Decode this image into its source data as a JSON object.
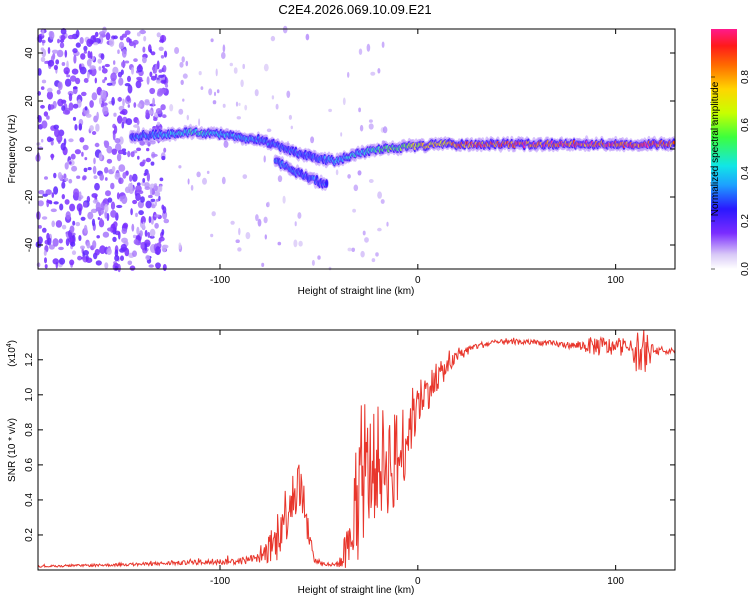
{
  "title": "C2E4.2026.069.10.09.E21",
  "colors": {
    "line": "#e8362c",
    "axis": "#000000",
    "background": "#ffffff"
  },
  "chart_data": [
    {
      "type": "heatmap",
      "name": "spectrogram",
      "xlabel": "Height of straight line (km)",
      "ylabel": "Frequency (Hz)",
      "xlim": [
        -192,
        130
      ],
      "ylim": [
        -50,
        50
      ],
      "xticks": [
        -100,
        0,
        100
      ],
      "xtick_labels": [
        "-100",
        "0",
        "100"
      ],
      "yticks": [
        -40,
        -20,
        0,
        20,
        40
      ],
      "ytick_labels": [
        "-40",
        "-20",
        "0",
        "20",
        "40"
      ],
      "colorbar": {
        "label": "Normalized spectral amplitude",
        "range": [
          0,
          1
        ],
        "ticks": [
          0,
          0.2,
          0.4,
          0.6,
          0.8
        ],
        "tick_labels": [
          "0.0",
          "0.2",
          "0.4",
          "0.6",
          "0.8"
        ]
      },
      "ridge": {
        "x": [
          -145,
          -130,
          -115,
          -100,
          -90,
          -80,
          -70,
          -60,
          -50,
          -42,
          -35,
          -25,
          -15,
          -5,
          0,
          10,
          30,
          60,
          90,
          110,
          130
        ],
        "freq": [
          5,
          6,
          7,
          6,
          5,
          4,
          1,
          -2,
          -4,
          -5,
          -3,
          -1,
          0,
          1,
          1,
          2,
          2,
          2,
          2,
          2,
          2
        ],
        "amplitude": [
          0.3,
          0.35,
          0.45,
          0.4,
          0.35,
          0.35,
          0.3,
          0.3,
          0.3,
          0.35,
          0.4,
          0.45,
          0.55,
          0.6,
          0.7,
          0.75,
          0.85,
          0.9,
          0.9,
          0.9,
          0.85
        ]
      },
      "secondary_branch": {
        "x": [
          -72,
          -65,
          -58,
          -52,
          -46
        ],
        "freq": [
          -5,
          -8,
          -11,
          -13,
          -15
        ]
      },
      "noise_region_x": [
        -192,
        -130
      ]
    },
    {
      "type": "line",
      "name": "snr",
      "xlabel": "Height of straight line (km)",
      "ylabel": "SNR (10 * v/v)",
      "y_multiplier": "(x10",
      "y_multiplier_exp": "4",
      "y_multiplier_close": ")",
      "xlim": [
        -192,
        130
      ],
      "ylim": [
        0,
        1.37
      ],
      "xticks": [
        -100,
        0,
        100
      ],
      "xtick_labels": [
        "-100",
        "0",
        "100"
      ],
      "yticks": [
        0.2,
        0.4,
        0.6,
        0.8,
        1.0,
        1.2
      ],
      "ytick_labels": [
        "0.2",
        "0.4",
        "0.6",
        "0.8",
        "1.0",
        "1.2"
      ],
      "envelope": {
        "x": [
          -192,
          -150,
          -120,
          -90,
          -80,
          -72,
          -66,
          -62,
          -59,
          -56,
          -52,
          -46,
          -42,
          -38,
          -34,
          -30,
          -26,
          -20,
          -10,
          -5,
          0,
          10,
          20,
          30,
          40,
          60,
          80,
          90,
          100,
          108,
          112,
          120,
          130
        ],
        "base": [
          0.02,
          0.03,
          0.04,
          0.05,
          0.07,
          0.15,
          0.35,
          0.5,
          0.45,
          0.25,
          0.05,
          0.03,
          0.03,
          0.05,
          0.15,
          0.4,
          0.55,
          0.62,
          0.62,
          0.8,
          0.95,
          1.1,
          1.22,
          1.28,
          1.3,
          1.3,
          1.28,
          1.28,
          1.27,
          1.27,
          1.22,
          1.25,
          1.25
        ],
        "noise": [
          0.005,
          0.008,
          0.012,
          0.02,
          0.03,
          0.12,
          0.18,
          0.2,
          0.15,
          0.08,
          0.02,
          0.01,
          0.01,
          0.04,
          0.15,
          0.35,
          0.32,
          0.32,
          0.3,
          0.2,
          0.15,
          0.08,
          0.03,
          0.02,
          0.015,
          0.015,
          0.02,
          0.06,
          0.05,
          0.04,
          0.15,
          0.02,
          0.015
        ]
      }
    }
  ]
}
